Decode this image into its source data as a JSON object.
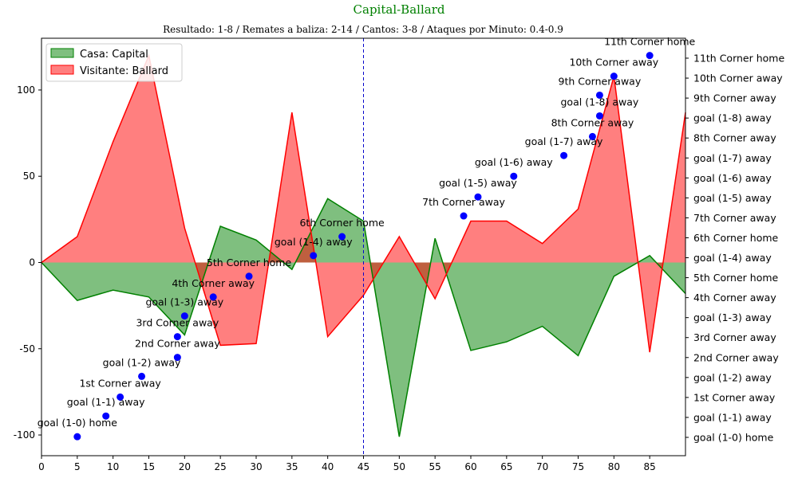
{
  "chart_data": {
    "type": "area",
    "title": "Capital-Ballard",
    "subtitle": "Resultado: 1-8 / Remates a baliza: 2-14 / Cantos: 3-8 / Ataques por Minuto: 0.4-0.9",
    "xlim": [
      0,
      90
    ],
    "ylim": [
      -112,
      130
    ],
    "x_ticks": [
      0,
      5,
      10,
      15,
      20,
      25,
      30,
      35,
      40,
      45,
      50,
      55,
      60,
      65,
      70,
      75,
      80,
      85
    ],
    "y_ticks": [
      -100,
      -50,
      0,
      50,
      100
    ],
    "halftime_line": 45,
    "x": [
      0,
      5,
      10,
      15,
      20,
      25,
      30,
      35,
      40,
      45,
      50,
      55,
      60,
      65,
      70,
      75,
      80,
      85,
      90
    ],
    "series": [
      {
        "name": "Casa: Capital",
        "color": "#008000",
        "values": [
          0,
          -22,
          -16,
          -20,
          -42,
          21,
          13,
          -4,
          37,
          24,
          -101,
          14,
          -51,
          -46,
          -37,
          -54,
          -8,
          4,
          -18
        ]
      },
      {
        "name": "Visitante: Ballard",
        "color": "#ff0000",
        "values": [
          0,
          15,
          70,
          120,
          20,
          -48,
          -47,
          87,
          -43,
          -19,
          15,
          -21,
          24,
          24,
          11,
          31,
          108,
          -52,
          87
        ]
      }
    ],
    "events": [
      {
        "minute": 5,
        "y": -101,
        "label": "goal (1-0) home"
      },
      {
        "minute": 9,
        "y": -89,
        "label": "goal (1-1) away"
      },
      {
        "minute": 11,
        "y": -78,
        "label": "1st Corner away"
      },
      {
        "minute": 14,
        "y": -66,
        "label": "goal (1-2) away"
      },
      {
        "minute": 19,
        "y": -55,
        "label": "2nd Corner away"
      },
      {
        "minute": 19,
        "y": -43,
        "label": "3rd Corner away"
      },
      {
        "minute": 20,
        "y": -31,
        "label": "goal (1-3) away"
      },
      {
        "minute": 24,
        "y": -20,
        "label": "4th Corner away"
      },
      {
        "minute": 29,
        "y": -8,
        "label": "5th Corner home"
      },
      {
        "minute": 38,
        "y": 4,
        "label": "goal (1-4) away"
      },
      {
        "minute": 42,
        "y": 15,
        "label": "6th Corner home"
      },
      {
        "minute": 59,
        "y": 27,
        "label": "7th Corner away"
      },
      {
        "minute": 61,
        "y": 38,
        "label": "goal (1-5) away"
      },
      {
        "minute": 66,
        "y": 50,
        "label": "goal (1-6) away"
      },
      {
        "minute": 73,
        "y": 62,
        "label": "goal (1-7) away"
      },
      {
        "minute": 77,
        "y": 73,
        "label": "8th Corner away"
      },
      {
        "minute": 78,
        "y": 85,
        "label": "goal (1-8) away"
      },
      {
        "minute": 78,
        "y": 97,
        "label": "9th Corner away"
      },
      {
        "minute": 80,
        "y": 108,
        "label": "10th Corner away"
      },
      {
        "minute": 85,
        "y": 120,
        "label": "11th Corner home"
      }
    ],
    "legend": {
      "position": "top-left"
    },
    "colors": {
      "marker": "#0000ff",
      "halftime": "#0000cc",
      "title": "#008000"
    }
  }
}
